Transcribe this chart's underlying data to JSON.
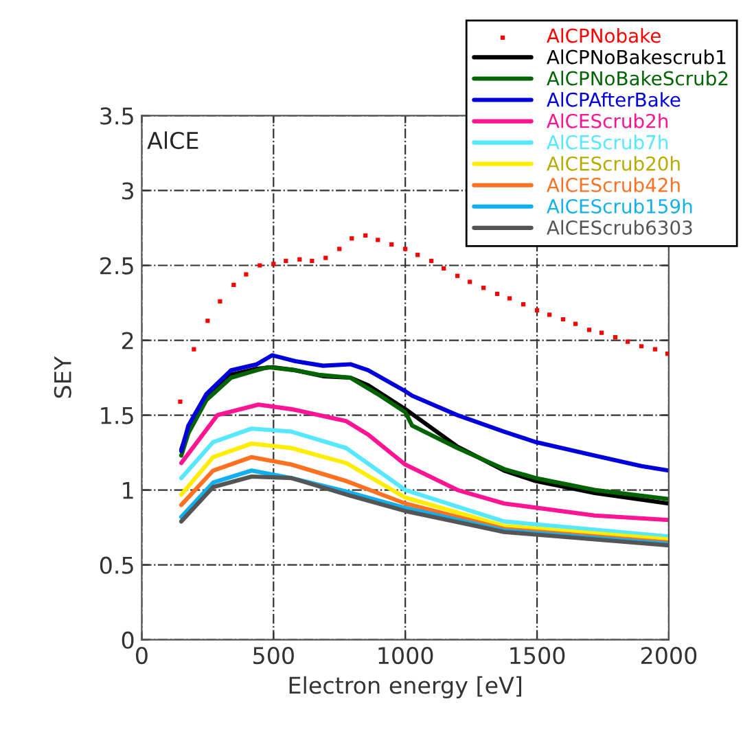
{
  "chart_data": {
    "type": "line",
    "xlabel": "Electron energy [eV]",
    "ylabel": "SEY",
    "annotations": [
      "AlCE"
    ],
    "xlim": [
      0,
      2000
    ],
    "xticks": [
      0,
      500,
      1000,
      1500,
      2000
    ],
    "ylim": [
      0,
      3.5
    ],
    "yticks": [
      0,
      0.5,
      1,
      1.5,
      2,
      2.5,
      3,
      3.5
    ],
    "grid": true,
    "legend": "top right",
    "line_style": "solid",
    "series": [
      {
        "name": "AlCPNobake",
        "type": "scatter",
        "marker": "square",
        "color": "#ff0000",
        "x": [
          146,
          198,
          250,
          297,
          349,
          396,
          448,
          500,
          547,
          599,
          646,
          698,
          750,
          797,
          849,
          896,
          948,
          1000,
          1047,
          1099,
          1146,
          1198,
          1245,
          1297,
          1349,
          1396,
          1448,
          1500,
          1547,
          1599,
          1646,
          1698,
          1745,
          1797,
          1844,
          1896,
          1948,
          1995
        ],
        "values": [
          1.59,
          1.94,
          2.13,
          2.26,
          2.37,
          2.44,
          2.5,
          2.51,
          2.53,
          2.54,
          2.53,
          2.55,
          2.61,
          2.68,
          2.7,
          2.67,
          2.64,
          2.61,
          2.57,
          2.53,
          2.48,
          2.43,
          2.39,
          2.35,
          2.31,
          2.28,
          2.24,
          2.2,
          2.17,
          2.14,
          2.11,
          2.07,
          2.05,
          2.02,
          1.99,
          1.96,
          1.94,
          1.91
        ]
      },
      {
        "name": "AlCPNoBakescrub1",
        "color": "#000000",
        "x": [
          150,
          177,
          245,
          339,
          437,
          495,
          583,
          688,
          792,
          859,
          1000,
          1198,
          1375,
          1495,
          1719,
          2000
        ],
        "values": [
          1.27,
          1.41,
          1.62,
          1.77,
          1.81,
          1.82,
          1.8,
          1.76,
          1.75,
          1.7,
          1.54,
          1.29,
          1.13,
          1.06,
          0.98,
          0.91
        ]
      },
      {
        "name": "AlCPNoBakeScrub2",
        "color": "#006400",
        "x": [
          150,
          177,
          245,
          339,
          437,
          479,
          583,
          672,
          792,
          896,
          1000,
          1026,
          1198,
          1375,
          1495,
          1719,
          2000
        ],
        "values": [
          1.23,
          1.38,
          1.6,
          1.75,
          1.8,
          1.82,
          1.8,
          1.77,
          1.75,
          1.64,
          1.52,
          1.43,
          1.28,
          1.14,
          1.08,
          1.0,
          0.94
        ]
      },
      {
        "name": "AlCPAfterBake",
        "color": "#0000dd",
        "x": [
          150,
          177,
          245,
          339,
          437,
          495,
          583,
          688,
          792,
          859,
          1000,
          1026,
          1198,
          1375,
          1495,
          1719,
          1896,
          2000
        ],
        "values": [
          1.26,
          1.43,
          1.64,
          1.8,
          1.84,
          1.9,
          1.86,
          1.83,
          1.84,
          1.8,
          1.66,
          1.63,
          1.5,
          1.39,
          1.32,
          1.23,
          1.16,
          1.13
        ]
      },
      {
        "name": "AlCEScrub2h",
        "color": "#ff1493",
        "x": [
          150,
          287,
          443,
          568,
          776,
          859,
          1000,
          1198,
          1375,
          1719,
          2000
        ],
        "values": [
          1.18,
          1.5,
          1.57,
          1.54,
          1.46,
          1.37,
          1.17,
          1.0,
          0.91,
          0.83,
          0.8
        ]
      },
      {
        "name": "AlCEScrub7h",
        "color": "#55e8ff",
        "x": [
          150,
          271,
          417,
          568,
          776,
          1000,
          1375,
          2000
        ],
        "values": [
          1.08,
          1.32,
          1.41,
          1.39,
          1.28,
          1.0,
          0.79,
          0.69
        ]
      },
      {
        "name": "AlCEScrub20h",
        "color": "#ffee00",
        "x": [
          150,
          271,
          417,
          568,
          776,
          1000,
          1375,
          2000
        ],
        "values": [
          0.97,
          1.22,
          1.31,
          1.28,
          1.18,
          0.95,
          0.76,
          0.67
        ]
      },
      {
        "name": "AlCEScrub42h",
        "color": "#ff7020",
        "x": [
          150,
          271,
          417,
          568,
          776,
          1000,
          1375,
          2000
        ],
        "values": [
          0.9,
          1.13,
          1.22,
          1.17,
          1.06,
          0.91,
          0.74,
          0.65
        ]
      },
      {
        "name": "AlCEScrub159h",
        "color": "#10b0f0",
        "x": [
          150,
          271,
          417,
          568,
          776,
          1000,
          1375,
          2000
        ],
        "values": [
          0.82,
          1.05,
          1.13,
          1.08,
          0.99,
          0.88,
          0.73,
          0.64
        ]
      },
      {
        "name": "AlCEScrub6303",
        "color": "#555555",
        "x": [
          150,
          271,
          417,
          568,
          776,
          1000,
          1375,
          2000
        ],
        "values": [
          0.79,
          1.02,
          1.09,
          1.08,
          0.97,
          0.86,
          0.72,
          0.63
        ]
      }
    ]
  }
}
